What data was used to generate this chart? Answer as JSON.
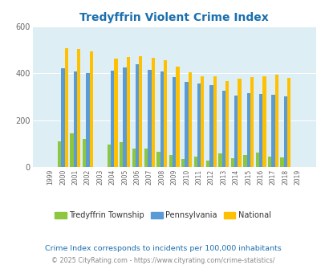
{
  "title": "Tredyffrin Violent Crime Index",
  "years": [
    1999,
    2000,
    2001,
    2002,
    2003,
    2004,
    2005,
    2006,
    2007,
    2008,
    2009,
    2010,
    2011,
    2012,
    2013,
    2014,
    2015,
    2016,
    2017,
    2018,
    2019
  ],
  "tredyffrin": [
    0,
    110,
    145,
    120,
    0,
    95,
    105,
    80,
    80,
    65,
    52,
    35,
    45,
    28,
    58,
    38,
    52,
    62,
    45,
    40,
    0
  ],
  "pennsylvania": [
    0,
    420,
    408,
    400,
    0,
    410,
    425,
    440,
    415,
    408,
    385,
    365,
    355,
    348,
    325,
    305,
    315,
    313,
    308,
    303,
    0
  ],
  "national": [
    0,
    507,
    504,
    494,
    0,
    463,
    469,
    474,
    467,
    455,
    429,
    404,
    387,
    387,
    368,
    376,
    384,
    387,
    395,
    382,
    0
  ],
  "colors": {
    "tredyffrin": "#8dc63f",
    "pennsylvania": "#5b9bd5",
    "national": "#ffc000",
    "background_plot": "#ddeef5",
    "background_fig": "#ffffff"
  },
  "ylim": [
    0,
    600
  ],
  "yticks": [
    0,
    200,
    400,
    600
  ],
  "ylabel_note": "Crime Index corresponds to incidents per 100,000 inhabitants",
  "footer": "© 2025 CityRating.com - https://www.cityrating.com/crime-statistics/",
  "title_color": "#1a6faf",
  "legend_labels": [
    "Tredyffrin Township",
    "Pennsylvania",
    "National"
  ],
  "bar_width": 0.28
}
